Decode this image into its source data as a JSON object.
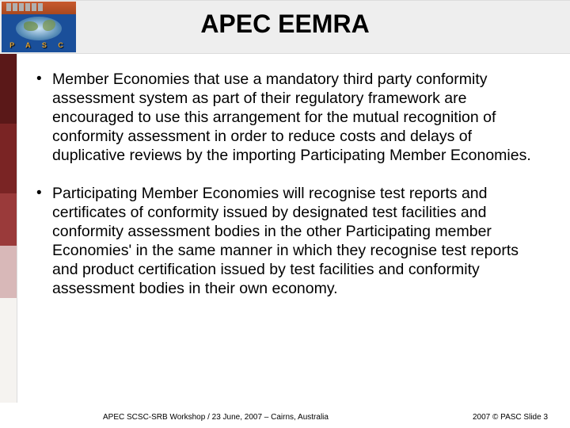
{
  "header": {
    "title": "APEC EEMRA",
    "logo_letters": "P A S C"
  },
  "bullets": [
    "Member Economies that use a mandatory third party conformity assessment system as part of their regulatory framework are encouraged to use this arrangement for the mutual recognition of conformity assessment in order to reduce costs and delays of duplicative reviews by the importing Participating Member Economies.",
    "Participating Member Economies will recognise test reports and certificates of conformity issued by designated test facilities and conformity assessment bodies in the other Participating member Economies' in the same manner in which they recognise test reports and product certification issued by test facilities and conformity assessment bodies in their own economy."
  ],
  "footer": {
    "left": "APEC SCSC-SRB Workshop   /   23 June, 2007 – Cairns, Australia",
    "right": "2007 © PASC Slide 3"
  },
  "colors": {
    "header_band": "#eeeeee",
    "logo_bg": "#1a4f9a",
    "logo_accent": "#e0a030",
    "text": "#000000"
  }
}
